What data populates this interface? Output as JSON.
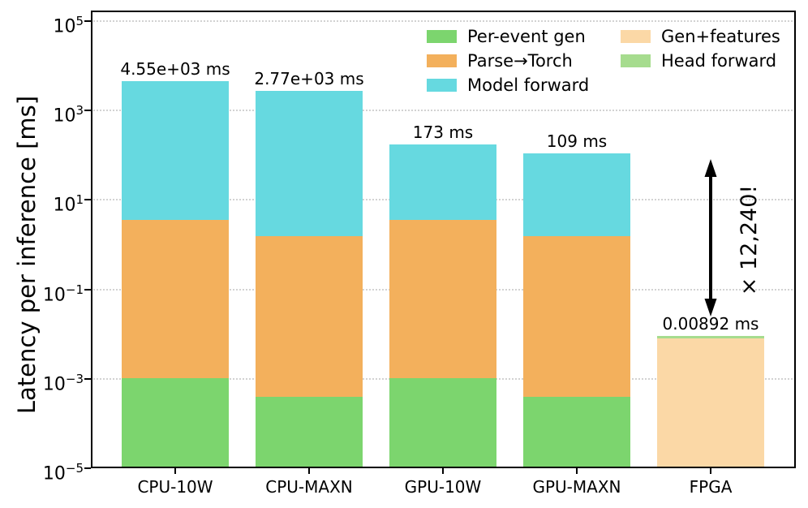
{
  "chart_data": {
    "type": "bar",
    "subtype": "stacked-log",
    "title": "",
    "xlabel": "",
    "ylabel": "Latency per inference [ms]",
    "yscale": "log",
    "ylim": [
      1e-05,
      172000
    ],
    "grid": "horizontal dotted at labeled decades",
    "legend_position": "upper right, 2 columns, no frame",
    "categories": [
      "CPU-10W",
      "CPU-MAXN",
      "GPU-10W",
      "GPU-MAXN",
      "FPGA"
    ],
    "totals_ms": [
      4550,
      2770,
      173,
      109,
      0.00892
    ],
    "bar_labels": [
      "4.55e+03 ms",
      "2.77e+03 ms",
      "173 ms",
      "109 ms",
      "0.00892 ms"
    ],
    "series": [
      {
        "name": "Per-event gen",
        "color": "#7cd56e",
        "cumulative_tops_ms": [
          0.00105,
          0.0004,
          0.00105,
          0.0004,
          null
        ]
      },
      {
        "name": "Parse→Torch",
        "color": "#f3b05c",
        "cumulative_tops_ms": [
          3.6,
          1.55,
          3.6,
          1.55,
          null
        ]
      },
      {
        "name": "Model forward",
        "color": "#66d9e0",
        "cumulative_tops_ms": [
          4550,
          2770,
          173,
          109,
          null
        ]
      },
      {
        "name": "Gen+features",
        "color": "#fbd8a6",
        "cumulative_tops_ms": [
          null,
          null,
          null,
          null,
          0.008
        ]
      },
      {
        "name": "Head forward",
        "color": "#a6dc8e",
        "cumulative_tops_ms": [
          null,
          null,
          null,
          null,
          0.00892
        ]
      }
    ],
    "yticks": [
      {
        "exp": "5"
      },
      {
        "exp": "3"
      },
      {
        "exp": "1"
      },
      {
        "exp": "−1"
      },
      {
        "exp": "−3"
      },
      {
        "exp": "−5"
      }
    ],
    "tick_base": "10",
    "annotation": {
      "text": "× 12,240!",
      "arrow": "vertical double-headed between GPU-MAXN latency level and FPGA bar top"
    }
  }
}
